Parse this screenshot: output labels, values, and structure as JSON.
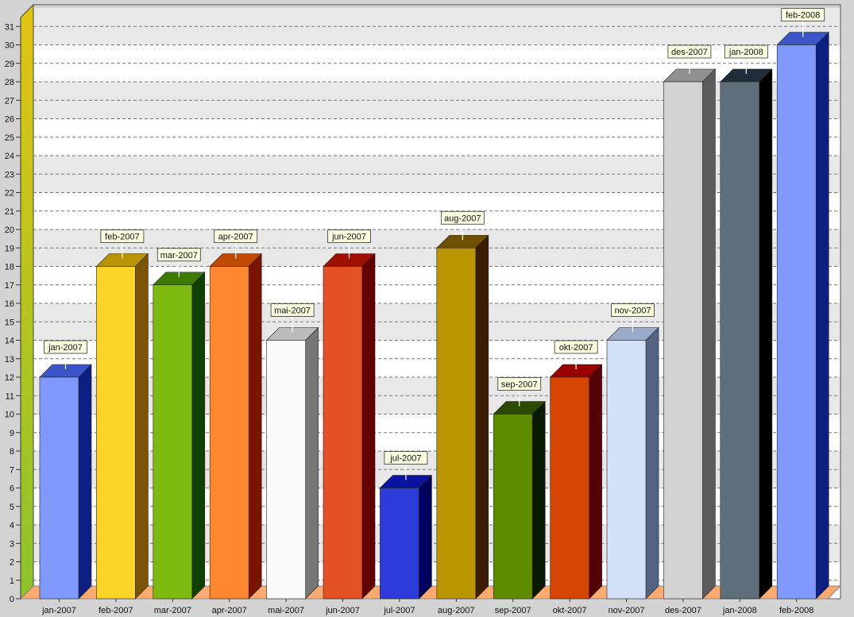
{
  "chart_data": {
    "type": "bar",
    "title": "",
    "xlabel": "",
    "ylabel": "",
    "ylim": [
      0,
      32
    ],
    "yticks": [
      0,
      1,
      2,
      3,
      4,
      5,
      6,
      7,
      8,
      9,
      10,
      11,
      12,
      13,
      14,
      15,
      16,
      17,
      18,
      19,
      20,
      21,
      22,
      23,
      24,
      25,
      26,
      27,
      28,
      29,
      30,
      31
    ],
    "grid": true,
    "legend": "none",
    "categories": [
      "jan-2007",
      "feb-2007",
      "mar-2007",
      "apr-2007",
      "mai-2007",
      "jun-2007",
      "jul-2007",
      "aug-2007",
      "sep-2007",
      "okt-2007",
      "nov-2007",
      "des-2007",
      "jan-2008",
      "feb-2008"
    ],
    "values": [
      12,
      18,
      17,
      18,
      14,
      18,
      6,
      19,
      10,
      12,
      14,
      28,
      28,
      30
    ],
    "data_labels": [
      "jan-2007",
      "feb-2007",
      "mar-2007",
      "apr-2007",
      "mai-2007",
      "jun-2007",
      "jul-2007",
      "aug-2007",
      "sep-2007",
      "okt-2007",
      "nov-2007",
      "des-2007",
      "jan-2008",
      "feb-2008"
    ],
    "bar_colors": [
      {
        "front": "#8099ff",
        "side": "#0d1f80",
        "top": "#3b55c8"
      },
      {
        "front": "#fcd328",
        "side": "#7a5400",
        "top": "#b89500"
      },
      {
        "front": "#7dba10",
        "side": "#0f4000",
        "top": "#3d7a00"
      },
      {
        "front": "#ff8730",
        "side": "#7a1400",
        "top": "#c04a00"
      },
      {
        "front": "#fafafa",
        "side": "#777777",
        "top": "#bbbbbb"
      },
      {
        "front": "#e35125",
        "side": "#650000",
        "top": "#a01000"
      },
      {
        "front": "#2d3bdb",
        "side": "#00005e",
        "top": "#0a12a0"
      },
      {
        "front": "#b99600",
        "side": "#3a1c00",
        "top": "#705000"
      },
      {
        "front": "#5f8b00",
        "side": "#0a1a00",
        "top": "#2a4a00"
      },
      {
        "front": "#d64500",
        "side": "#560000",
        "top": "#9a0000"
      },
      {
        "front": "#d2e1f8",
        "side": "#536482",
        "top": "#9aaac8"
      },
      {
        "front": "#d2d2d2",
        "side": "#5c5c5c",
        "top": "#909090"
      },
      {
        "front": "#5f707c",
        "side": "#000000",
        "top": "#1f2d3a"
      },
      {
        "front": "#8099ff",
        "side": "#0d1f80",
        "top": "#3b55c8"
      }
    ]
  }
}
